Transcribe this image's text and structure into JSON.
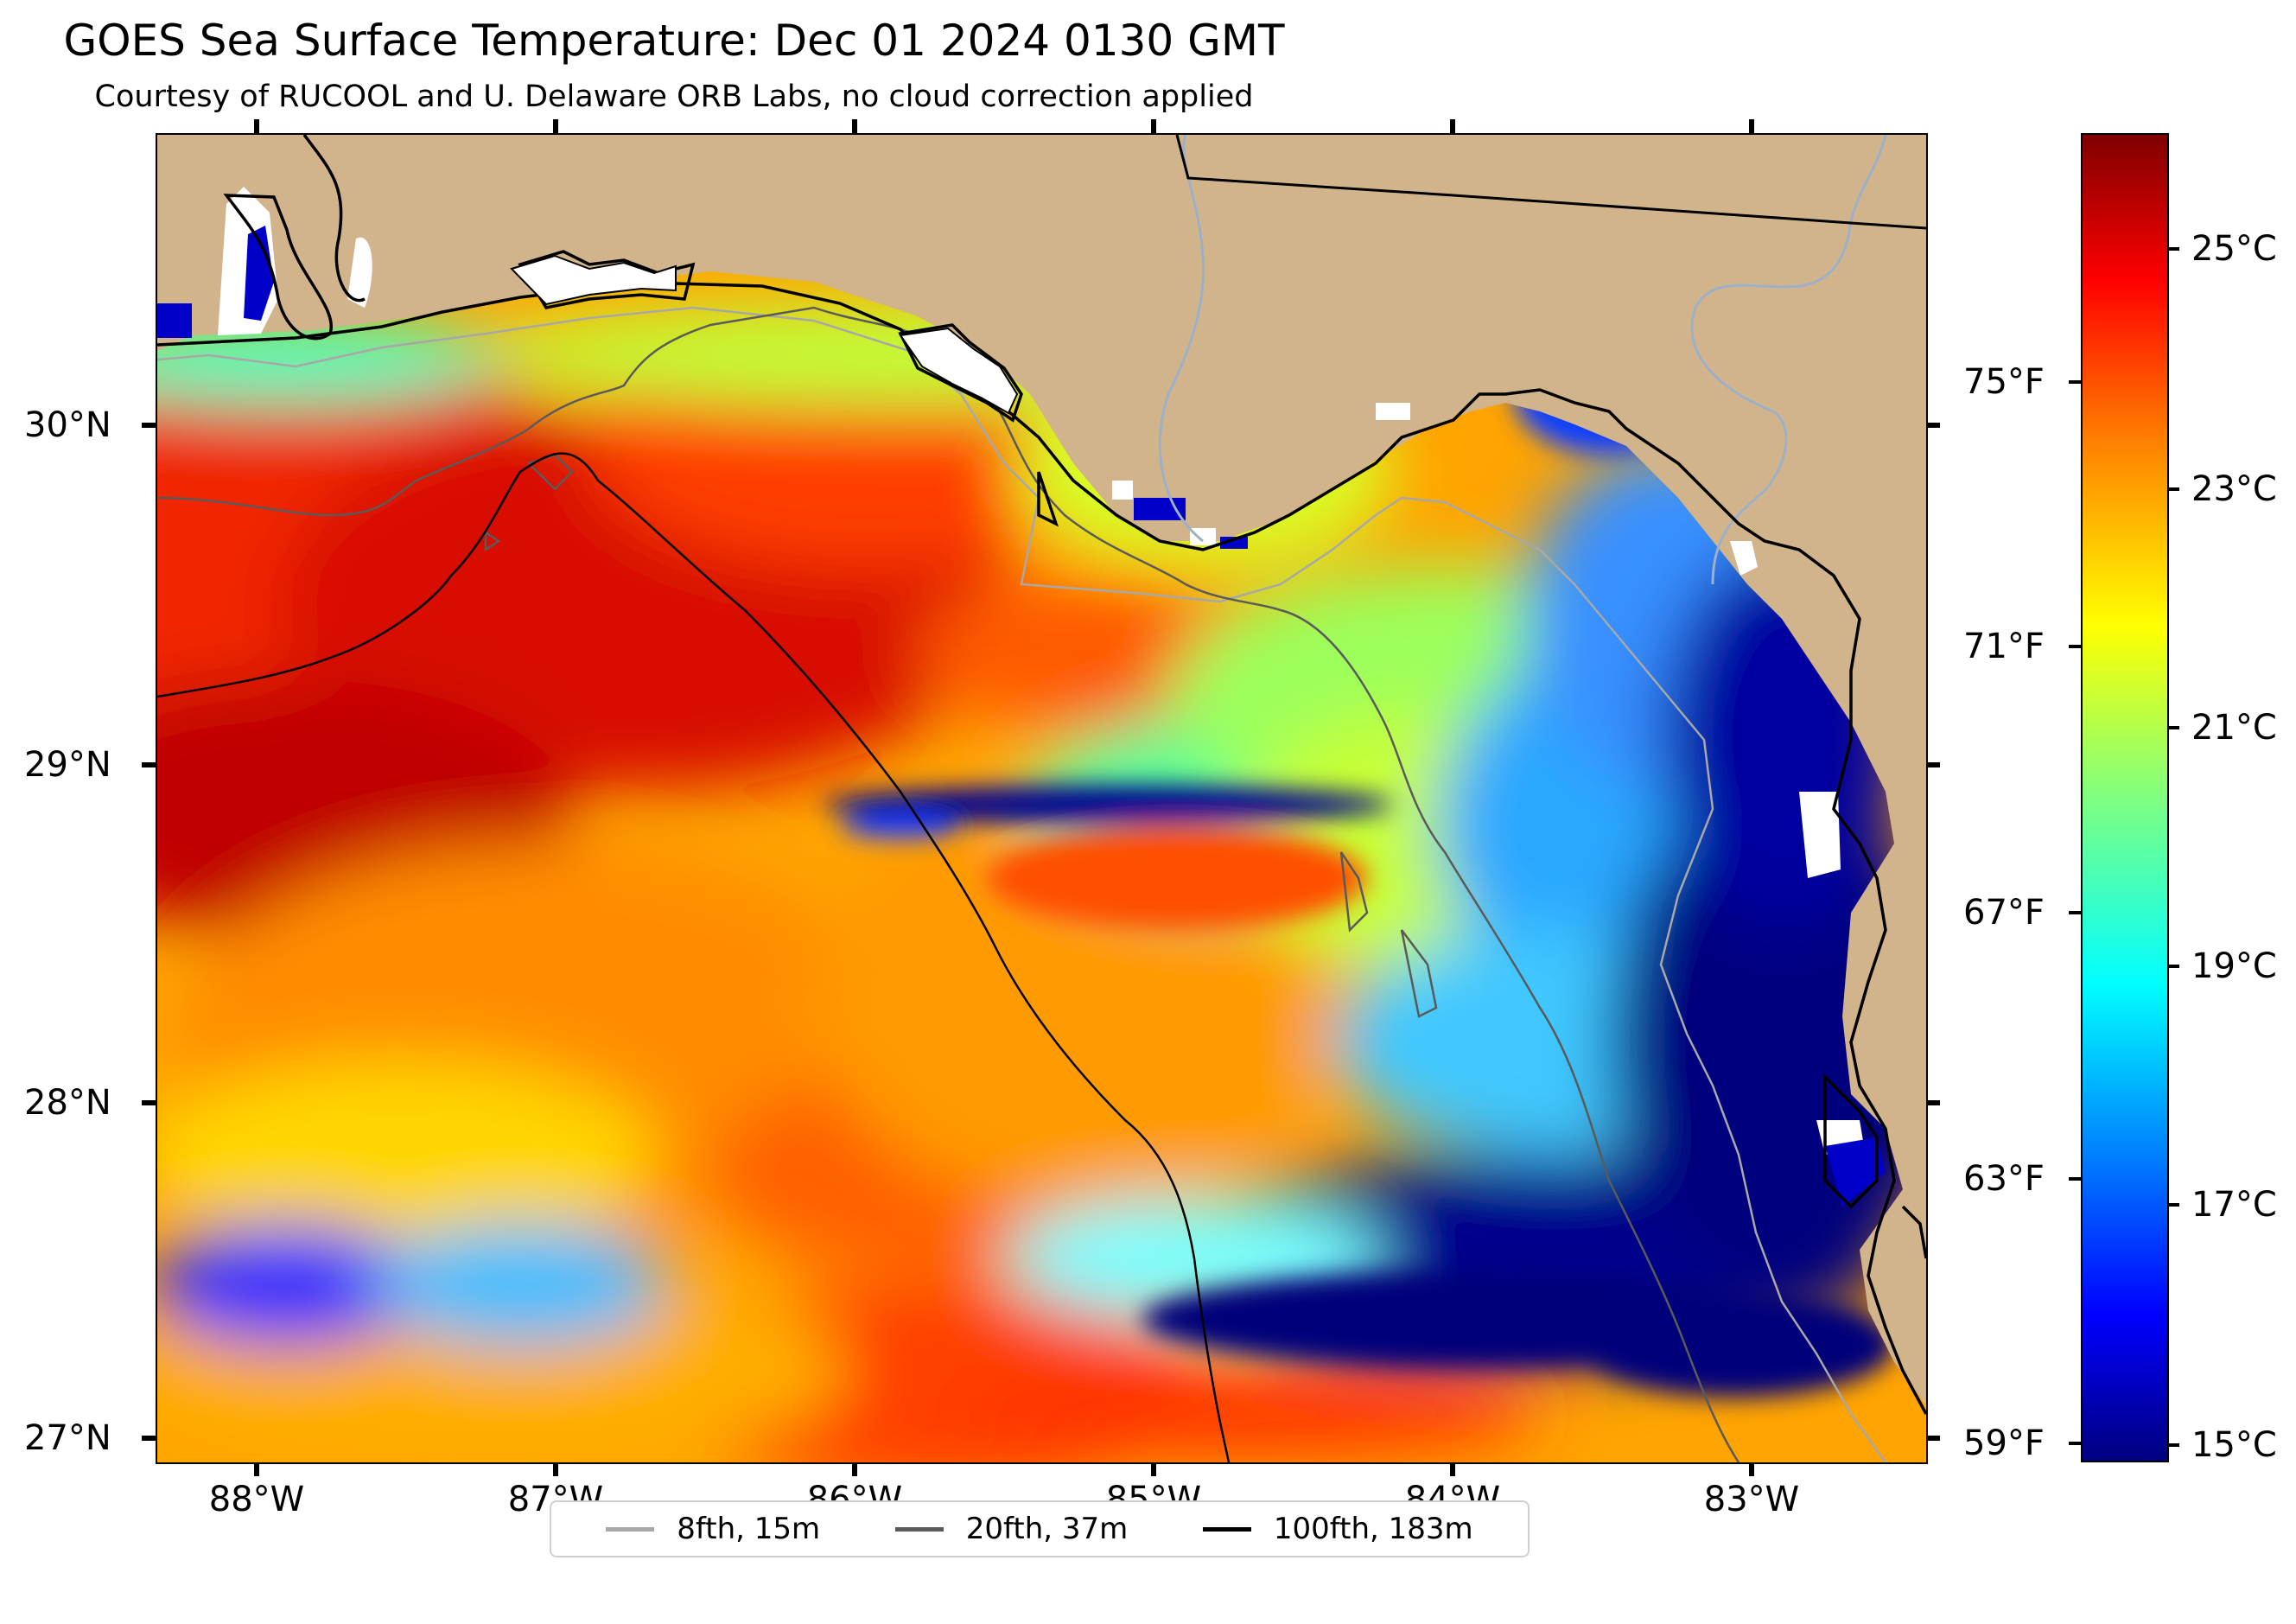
{
  "title": "GOES Sea Surface Temperature: Dec 01 2024 0130 GMT",
  "subtitle": "Courtesy of RUCOOL and U. Delaware ORB Labs, no cloud correction applied",
  "map": {
    "extent": {
      "lon_min": -88.33,
      "lon_max": -82.42,
      "lat_min": 26.93,
      "lat_max": 30.86
    },
    "land_color": "#d2b48c",
    "lat_ticks": [
      {
        "value": 30,
        "label": "30°N"
      },
      {
        "value": 29,
        "label": "29°N"
      },
      {
        "value": 28,
        "label": "28°N"
      },
      {
        "value": 27,
        "label": "27°N"
      }
    ],
    "lon_ticks": [
      {
        "value": -88,
        "label": "88°W"
      },
      {
        "value": -87,
        "label": "87°W"
      },
      {
        "value": -86,
        "label": "86°W"
      },
      {
        "value": -85,
        "label": "85°W"
      },
      {
        "value": -84,
        "label": "84°W"
      },
      {
        "value": -83,
        "label": "83°W"
      }
    ]
  },
  "legend": [
    {
      "label": "8fth, 15m",
      "color": "#a8a8a8"
    },
    {
      "label": "20fth, 37m",
      "color": "#5a5a5a"
    },
    {
      "label": "100fth, 183m",
      "color": "#000000"
    }
  ],
  "colorbar": {
    "range_c": [
      14.8,
      26.1
    ],
    "colormap": "jet",
    "celsius_ticks": [
      {
        "value": 15,
        "label": "15°C"
      },
      {
        "value": 17,
        "label": "17°C"
      },
      {
        "value": 19,
        "label": "19°C"
      },
      {
        "value": 21,
        "label": "21°C"
      },
      {
        "value": 23,
        "label": "23°C"
      },
      {
        "value": 25,
        "label": "25°C"
      }
    ],
    "fahrenheit_ticks": [
      {
        "value": 59,
        "label": "59°F"
      },
      {
        "value": 63,
        "label": "63°F"
      },
      {
        "value": 67,
        "label": "67°F"
      },
      {
        "value": 71,
        "label": "71°F"
      },
      {
        "value": 75,
        "label": "75°F"
      }
    ]
  }
}
